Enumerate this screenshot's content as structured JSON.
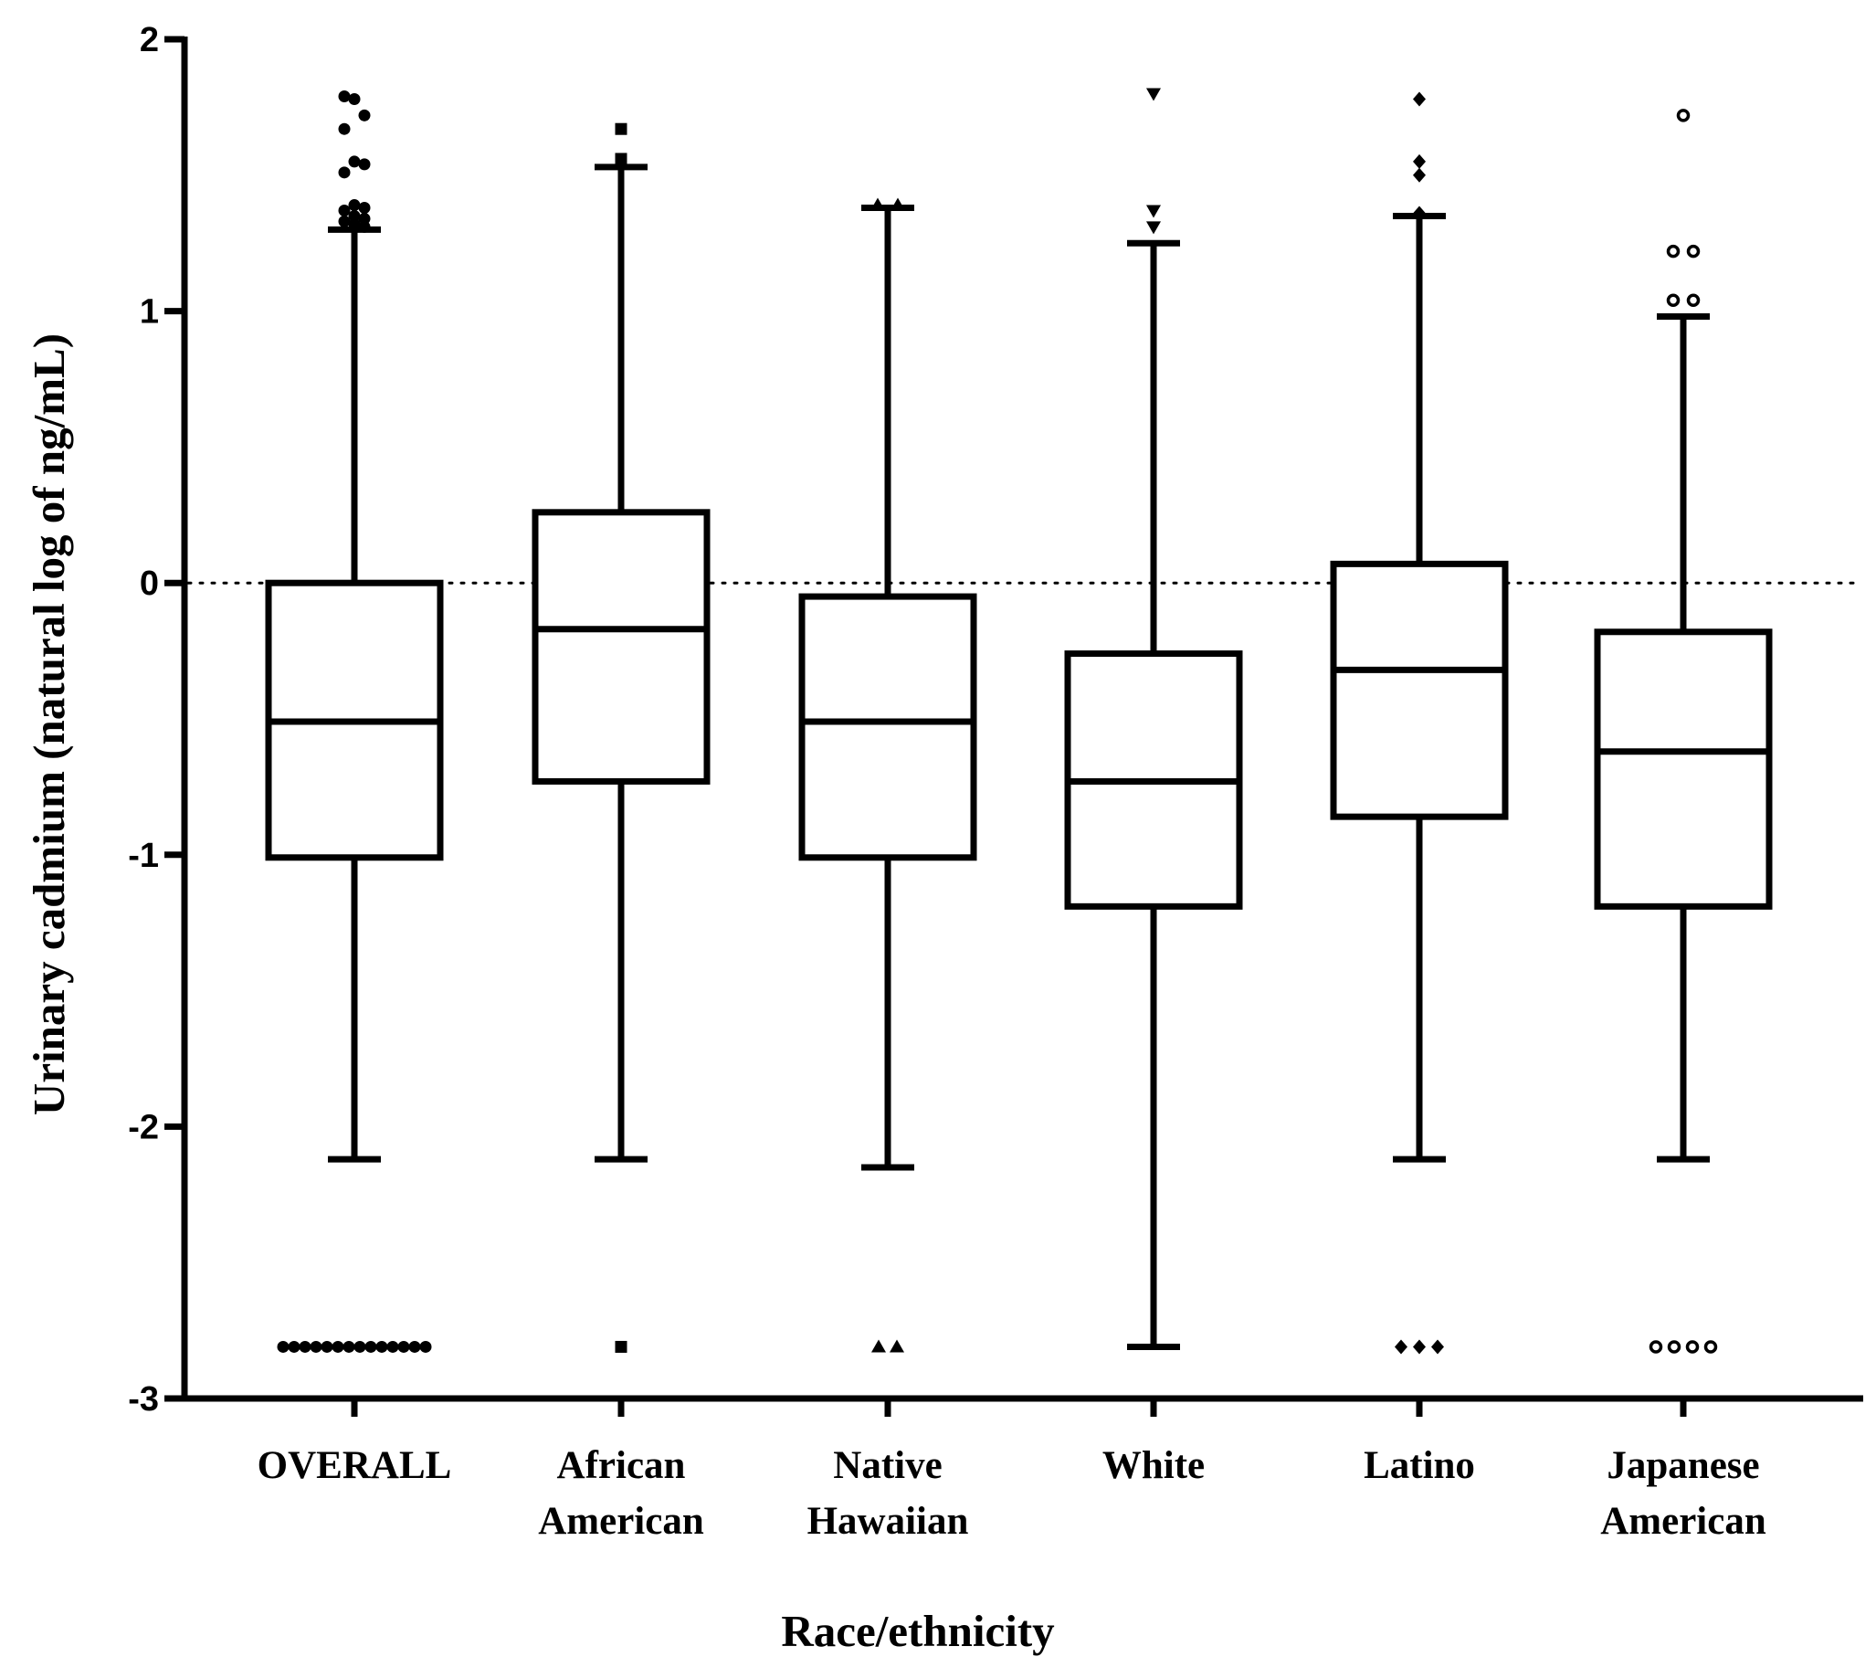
{
  "chart_data": {
    "type": "box",
    "title": "",
    "xlabel": "Race/ethnicity",
    "ylabel": "Urinary cadmium (natural log of ng/mL)",
    "ylim": [
      -3,
      2
    ],
    "yticks": [
      2,
      1,
      0,
      -1,
      -2,
      -3
    ],
    "ytick_labels": [
      "2",
      "1",
      "0",
      "-1",
      "-2",
      "-3"
    ],
    "reference_line": {
      "y": 0,
      "style": "dotted"
    },
    "groups": [
      {
        "label": [
          "OVERALL"
        ],
        "marker": "circle-filled",
        "whisker_low": -2.12,
        "q1": -1.01,
        "median": -0.51,
        "q3": 0.0,
        "whisker_high": 1.3,
        "outliers_high": [
          1.79,
          1.78,
          1.72,
          1.67,
          1.55,
          1.54,
          1.51,
          1.39,
          1.38,
          1.37,
          1.35,
          1.34,
          1.33,
          1.32,
          1.31
        ],
        "outliers_low_value": -2.81,
        "outliers_low_count": 14
      },
      {
        "label": [
          "African",
          "American"
        ],
        "marker": "square-filled",
        "whisker_low": -2.12,
        "q1": -0.73,
        "median": -0.17,
        "q3": 0.26,
        "whisker_high": 1.53,
        "outliers_high": [
          1.67,
          1.56
        ],
        "outliers_low_value": -2.81,
        "outliers_low_count": 1
      },
      {
        "label": [
          "Native",
          "Hawaiian"
        ],
        "marker": "triangle-up-filled",
        "whisker_low": -2.15,
        "q1": -1.01,
        "median": -0.51,
        "q3": -0.05,
        "whisker_high": 1.38,
        "outliers_high": [
          1.39,
          1.39
        ],
        "outliers_low_value": -2.81,
        "outliers_low_count": 2
      },
      {
        "label": [
          "White"
        ],
        "marker": "triangle-down-filled",
        "whisker_low": -2.81,
        "q1": -1.19,
        "median": -0.73,
        "q3": -0.26,
        "whisker_high": 1.25,
        "outliers_high": [
          1.8,
          1.37,
          1.31
        ],
        "outliers_low_value": null,
        "outliers_low_count": 0
      },
      {
        "label": [
          "Latino"
        ],
        "marker": "diamond-filled",
        "whisker_low": -2.12,
        "q1": -0.86,
        "median": -0.32,
        "q3": 0.07,
        "whisker_high": 1.35,
        "outliers_high": [
          1.78,
          1.55,
          1.5,
          1.36
        ],
        "outliers_low_value": -2.81,
        "outliers_low_count": 3
      },
      {
        "label": [
          "Japanese",
          "American"
        ],
        "marker": "circle-open",
        "whisker_low": -2.12,
        "q1": -1.19,
        "median": -0.62,
        "q3": -0.18,
        "whisker_high": 0.98,
        "outliers_high": [
          1.72,
          1.22,
          1.22,
          1.04,
          1.04
        ],
        "outliers_low_value": -2.81,
        "outliers_low_count": 4
      }
    ]
  }
}
